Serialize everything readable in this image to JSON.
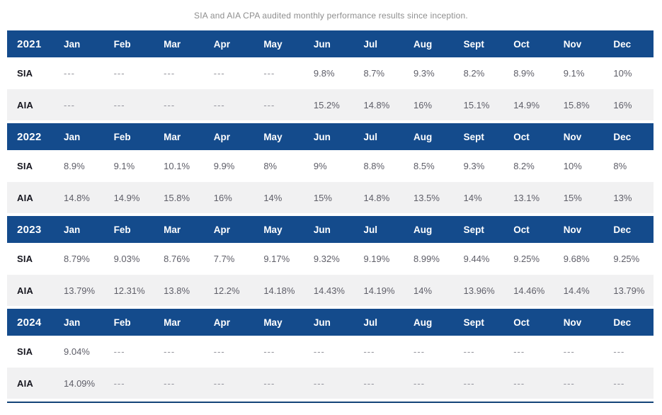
{
  "title": "SIA and AIA CPA audited monthly performance results since inception.",
  "colors": {
    "header_bg": "#144b8c",
    "header_text": "#ffffff",
    "row_alt_bg": "#f1f1f2",
    "data_text": "#5e5e68",
    "label_text": "#16161f",
    "title_text": "#8e8e8e",
    "bottom_rule": "#134478"
  },
  "months": [
    "Jan",
    "Feb",
    "Mar",
    "Apr",
    "May",
    "Jun",
    "Jul",
    "Aug",
    "Sept",
    "Oct",
    "Nov",
    "Dec"
  ],
  "chart_data": {
    "type": "table",
    "title": "SIA and AIA CPA audited monthly performance results since inception.",
    "categories": [
      "Jan",
      "Feb",
      "Mar",
      "Apr",
      "May",
      "Jun",
      "Jul",
      "Aug",
      "Sept",
      "Oct",
      "Nov",
      "Dec"
    ],
    "series": [
      {
        "name": "SIA 2021",
        "values": [
          "---",
          "---",
          "---",
          "---",
          "---",
          "9.8%",
          "8.7%",
          "9.3%",
          "8.2%",
          "8.9%",
          "9.1%",
          "10%"
        ]
      },
      {
        "name": "AIA 2021",
        "values": [
          "---",
          "---",
          "---",
          "---",
          "---",
          "15.2%",
          "14.8%",
          "16%",
          "15.1%",
          "14.9%",
          "15.8%",
          "16%"
        ]
      },
      {
        "name": "SIA 2022",
        "values": [
          "8.9%",
          "9.1%",
          "10.1%",
          "9.9%",
          "8%",
          "9%",
          "8.8%",
          "8.5%",
          "9.3%",
          "8.2%",
          "10%",
          "8%"
        ]
      },
      {
        "name": "AIA 2022",
        "values": [
          "14.8%",
          "14.9%",
          "15.8%",
          "16%",
          "14%",
          "15%",
          "14.8%",
          "13.5%",
          "14%",
          "13.1%",
          "15%",
          "13%"
        ]
      },
      {
        "name": "SIA 2023",
        "values": [
          "8.79%",
          "9.03%",
          "8.76%",
          "7.7%",
          "9.17%",
          "9.32%",
          "9.19%",
          "8.99%",
          "9.44%",
          "9.25%",
          "9.68%",
          "9.25%"
        ]
      },
      {
        "name": "AIA 2023",
        "values": [
          "13.79%",
          "12.31%",
          "13.8%",
          "12.2%",
          "14.18%",
          "14.43%",
          "14.19%",
          "14%",
          "13.96%",
          "14.46%",
          "14.4%",
          "13.79%"
        ]
      },
      {
        "name": "SIA 2024",
        "values": [
          "9.04%",
          "---",
          "---",
          "---",
          "---",
          "---",
          "---",
          "---",
          "---",
          "---",
          "---",
          "---"
        ]
      },
      {
        "name": "AIA 2024",
        "values": [
          "14.09%",
          "---",
          "---",
          "---",
          "---",
          "---",
          "---",
          "---",
          "---",
          "---",
          "---",
          "---"
        ]
      }
    ]
  },
  "years": [
    {
      "year": "2021",
      "rows": [
        {
          "label": "SIA",
          "values": [
            "---",
            "---",
            "---",
            "---",
            "---",
            "9.8%",
            "8.7%",
            "9.3%",
            "8.2%",
            "8.9%",
            "9.1%",
            "10%"
          ]
        },
        {
          "label": "AIA",
          "values": [
            "---",
            "---",
            "---",
            "---",
            "---",
            "15.2%",
            "14.8%",
            "16%",
            "15.1%",
            "14.9%",
            "15.8%",
            "16%"
          ]
        }
      ]
    },
    {
      "year": "2022",
      "rows": [
        {
          "label": "SIA",
          "values": [
            "8.9%",
            "9.1%",
            "10.1%",
            "9.9%",
            "8%",
            "9%",
            "8.8%",
            "8.5%",
            "9.3%",
            "8.2%",
            "10%",
            "8%"
          ]
        },
        {
          "label": "AIA",
          "values": [
            "14.8%",
            "14.9%",
            "15.8%",
            "16%",
            "14%",
            "15%",
            "14.8%",
            "13.5%",
            "14%",
            "13.1%",
            "15%",
            "13%"
          ]
        }
      ]
    },
    {
      "year": "2023",
      "rows": [
        {
          "label": "SIA",
          "values": [
            "8.79%",
            "9.03%",
            "8.76%",
            "7.7%",
            "9.17%",
            "9.32%",
            "9.19%",
            "8.99%",
            "9.44%",
            "9.25%",
            "9.68%",
            "9.25%"
          ]
        },
        {
          "label": "AIA",
          "values": [
            "13.79%",
            "12.31%",
            "13.8%",
            "12.2%",
            "14.18%",
            "14.43%",
            "14.19%",
            "14%",
            "13.96%",
            "14.46%",
            "14.4%",
            "13.79%"
          ]
        }
      ]
    },
    {
      "year": "2024",
      "rows": [
        {
          "label": "SIA",
          "values": [
            "9.04%",
            "---",
            "---",
            "---",
            "---",
            "---",
            "---",
            "---",
            "---",
            "---",
            "---",
            "---"
          ]
        },
        {
          "label": "AIA",
          "values": [
            "14.09%",
            "---",
            "---",
            "---",
            "---",
            "---",
            "---",
            "---",
            "---",
            "---",
            "---",
            "---"
          ]
        }
      ]
    }
  ]
}
